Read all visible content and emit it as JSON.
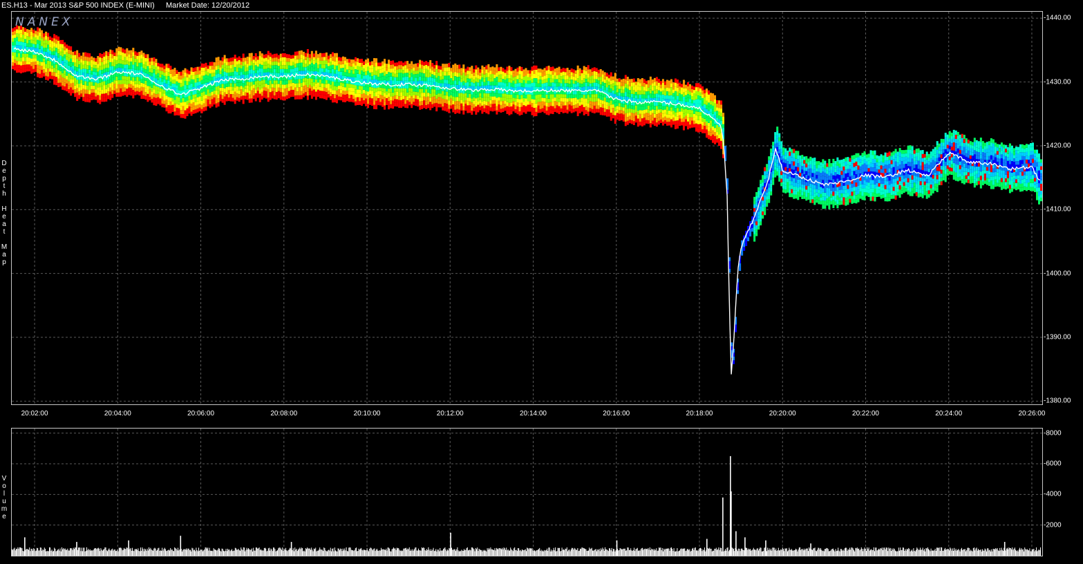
{
  "header": {
    "symbol": "ES.H13 - Mar 2013 S&P 500 INDEX (E-MINI)",
    "market_date": "Market Date: 12/20/2012"
  },
  "watermark": "NANEX",
  "side_labels": {
    "main": "Depth Heat Map",
    "volume": "Volume"
  },
  "colors": {
    "price_line": "#ffffff",
    "heat_scale": [
      "#0000ff",
      "#0a7dff",
      "#00cfff",
      "#00ffd0",
      "#00ff60",
      "#a0ff00",
      "#ffff00",
      "#ff9a00",
      "#ff0000"
    ],
    "grid": "#5a5a5a",
    "volume_bars": "#ffffff"
  },
  "chart_data": [
    {
      "type": "heatmap",
      "title": "",
      "xlabel": "",
      "ylabel": "Depth Heat Map",
      "x_ticks": [
        "20:02:00",
        "20:04:00",
        "20:06:00",
        "20:08:00",
        "20:10:00",
        "20:12:00",
        "20:14:00",
        "20:16:00",
        "20:18:00",
        "20:20:00",
        "20:22:00",
        "20:24:00",
        "20:26:00"
      ],
      "y_ticks": [
        "1440.00",
        "1430.00",
        "1420.00",
        "1410.00",
        "1400.00",
        "1390.00",
        "1380.00"
      ],
      "ylim": [
        1379.5,
        1441.0
      ],
      "xlim": [
        "20:01:27",
        "20:26:15"
      ],
      "grid": true,
      "series": [
        {
          "points": [
            [
              "20:01:30",
              1435.2
            ],
            [
              "20:02:00",
              1434.8
            ],
            [
              "20:02:30",
              1433.4
            ],
            [
              "20:03:00",
              1431.0
            ],
            [
              "20:03:30",
              1430.4
            ],
            [
              "20:04:00",
              1431.6
            ],
            [
              "20:04:30",
              1431.3
            ],
            [
              "20:05:00",
              1429.6
            ],
            [
              "20:05:30",
              1428.0
            ],
            [
              "20:06:00",
              1429.0
            ],
            [
              "20:06:30",
              1430.3
            ],
            [
              "20:07:00",
              1430.5
            ],
            [
              "20:07:30",
              1430.9
            ],
            [
              "20:08:00",
              1430.8
            ],
            [
              "20:08:30",
              1431.2
            ],
            [
              "20:09:00",
              1430.9
            ],
            [
              "20:09:30",
              1430.3
            ],
            [
              "20:10:00",
              1429.8
            ],
            [
              "20:10:30",
              1429.6
            ],
            [
              "20:11:00",
              1429.6
            ],
            [
              "20:11:30",
              1429.5
            ],
            [
              "20:12:00",
              1429.0
            ],
            [
              "20:12:30",
              1428.7
            ],
            [
              "20:13:00",
              1428.9
            ],
            [
              "20:13:30",
              1428.6
            ],
            [
              "20:14:00",
              1428.6
            ],
            [
              "20:14:30",
              1428.7
            ],
            [
              "20:15:00",
              1428.6
            ],
            [
              "20:15:30",
              1428.7
            ],
            [
              "20:16:00",
              1427.3
            ],
            [
              "20:16:30",
              1426.8
            ],
            [
              "20:17:00",
              1426.9
            ],
            [
              "20:17:30",
              1426.5
            ],
            [
              "20:18:00",
              1425.9
            ],
            [
              "20:18:15",
              1424.6
            ],
            [
              "20:18:30",
              1423.3
            ],
            [
              "20:18:35",
              1420.5
            ],
            [
              "20:18:40",
              1412.0
            ],
            [
              "20:18:43",
              1396.0
            ],
            [
              "20:18:46",
              1384.0
            ],
            [
              "20:18:50",
              1390.0
            ],
            [
              "20:18:55",
              1400.0
            ],
            [
              "20:19:00",
              1404.0
            ],
            [
              "20:19:10",
              1406.5
            ],
            [
              "20:19:20",
              1409.0
            ],
            [
              "20:19:30",
              1412.0
            ],
            [
              "20:19:40",
              1415.0
            ],
            [
              "20:19:50",
              1419.5
            ],
            [
              "20:20:00",
              1416.2
            ],
            [
              "20:20:30",
              1415.0
            ],
            [
              "20:21:00",
              1413.9
            ],
            [
              "20:21:30",
              1414.4
            ],
            [
              "20:22:00",
              1415.4
            ],
            [
              "20:22:30",
              1415.1
            ],
            [
              "20:23:00",
              1416.2
            ],
            [
              "20:23:30",
              1415.3
            ],
            [
              "20:24:00",
              1418.9
            ],
            [
              "20:24:30",
              1417.4
            ],
            [
              "20:25:00",
              1417.2
            ],
            [
              "20:25:30",
              1416.4
            ],
            [
              "20:26:00",
              1416.7
            ],
            [
              "20:26:10",
              1414.6
            ]
          ]
        }
      ]
    },
    {
      "type": "bar",
      "title": "",
      "xlabel": "",
      "ylabel": "Volume",
      "y_ticks": [
        "8000",
        "6000",
        "4000",
        "2000"
      ],
      "ylim": [
        0,
        8300
      ],
      "grid": true,
      "baseline": 500,
      "spikes": [
        [
          "20:01:45",
          1200
        ],
        [
          "20:03:00",
          900
        ],
        [
          "20:04:15",
          1000
        ],
        [
          "20:05:30",
          1300
        ],
        [
          "20:08:10",
          900
        ],
        [
          "20:12:00",
          1500
        ],
        [
          "20:16:00",
          1000
        ],
        [
          "20:18:10",
          1100
        ],
        [
          "20:18:33",
          3800
        ],
        [
          "20:18:44",
          6500
        ],
        [
          "20:18:45",
          4200
        ],
        [
          "20:18:52",
          1600
        ],
        [
          "20:19:05",
          1200
        ],
        [
          "20:19:35",
          1000
        ],
        [
          "20:20:40",
          800
        ],
        [
          "20:25:20",
          900
        ]
      ]
    }
  ]
}
